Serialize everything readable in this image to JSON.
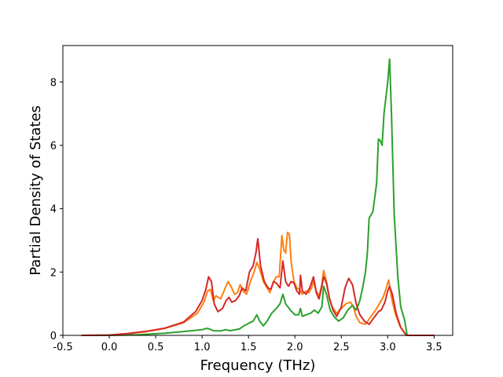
{
  "chart_data": {
    "type": "line",
    "title": "",
    "xlabel": "Frequency (THz)",
    "ylabel": "Partial Density of States",
    "xlim": [
      -0.5,
      3.7
    ],
    "ylim": [
      0,
      9.15
    ],
    "grid": false,
    "legend": "none",
    "x_ticks": [
      "-0.5",
      "0.0",
      "0.5",
      "1.0",
      "1.5",
      "2.0",
      "2.5",
      "3.0",
      "3.5"
    ],
    "y_ticks": [
      "0",
      "2",
      "4",
      "6",
      "8"
    ],
    "series": [
      {
        "color": "#ff7f0e",
        "points": [
          [
            -0.3,
            0
          ],
          [
            0,
            0.01
          ],
          [
            0.2,
            0.05
          ],
          [
            0.4,
            0.12
          ],
          [
            0.6,
            0.22
          ],
          [
            0.8,
            0.4
          ],
          [
            0.95,
            0.7
          ],
          [
            1.02,
            1.05
          ],
          [
            1.06,
            1.4
          ],
          [
            1.09,
            1.45
          ],
          [
            1.12,
            1.1
          ],
          [
            1.15,
            1.25
          ],
          [
            1.2,
            1.15
          ],
          [
            1.25,
            1.5
          ],
          [
            1.28,
            1.7
          ],
          [
            1.31,
            1.55
          ],
          [
            1.35,
            1.3
          ],
          [
            1.38,
            1.35
          ],
          [
            1.41,
            1.6
          ],
          [
            1.44,
            1.4
          ],
          [
            1.48,
            1.3
          ],
          [
            1.52,
            1.7
          ],
          [
            1.56,
            2.0
          ],
          [
            1.59,
            2.3
          ],
          [
            1.62,
            2.1
          ],
          [
            1.66,
            1.7
          ],
          [
            1.7,
            1.5
          ],
          [
            1.73,
            1.35
          ],
          [
            1.77,
            1.7
          ],
          [
            1.8,
            1.85
          ],
          [
            1.83,
            1.85
          ],
          [
            1.86,
            3.15
          ],
          [
            1.88,
            2.7
          ],
          [
            1.9,
            2.6
          ],
          [
            1.92,
            3.25
          ],
          [
            1.94,
            3.2
          ],
          [
            1.96,
            2.3
          ],
          [
            1.99,
            1.7
          ],
          [
            2.02,
            1.5
          ],
          [
            2.05,
            1.45
          ],
          [
            2.08,
            1.3
          ],
          [
            2.12,
            1.4
          ],
          [
            2.15,
            1.35
          ],
          [
            2.18,
            1.5
          ],
          [
            2.2,
            1.7
          ],
          [
            2.23,
            1.4
          ],
          [
            2.26,
            1.25
          ],
          [
            2.29,
            1.6
          ],
          [
            2.31,
            2.05
          ],
          [
            2.34,
            1.7
          ],
          [
            2.37,
            1.2
          ],
          [
            2.4,
            0.9
          ],
          [
            2.45,
            0.7
          ],
          [
            2.5,
            0.85
          ],
          [
            2.55,
            1.0
          ],
          [
            2.6,
            1.05
          ],
          [
            2.63,
            0.9
          ],
          [
            2.66,
            0.6
          ],
          [
            2.7,
            0.4
          ],
          [
            2.76,
            0.35
          ],
          [
            2.82,
            0.6
          ],
          [
            2.87,
            0.8
          ],
          [
            2.91,
            1.0
          ],
          [
            2.95,
            1.2
          ],
          [
            2.98,
            1.45
          ],
          [
            3.01,
            1.75
          ],
          [
            3.04,
            1.2
          ],
          [
            3.08,
            0.7
          ],
          [
            3.13,
            0.3
          ],
          [
            3.2,
            0
          ],
          [
            3.5,
            0
          ]
        ]
      },
      {
        "color": "#2ca02c",
        "points": [
          [
            -0.3,
            0
          ],
          [
            0,
            0
          ],
          [
            0.3,
            0.02
          ],
          [
            0.6,
            0.07
          ],
          [
            0.9,
            0.15
          ],
          [
            1.0,
            0.18
          ],
          [
            1.05,
            0.22
          ],
          [
            1.08,
            0.2
          ],
          [
            1.12,
            0.15
          ],
          [
            1.2,
            0.14
          ],
          [
            1.25,
            0.18
          ],
          [
            1.3,
            0.15
          ],
          [
            1.4,
            0.2
          ],
          [
            1.45,
            0.3
          ],
          [
            1.5,
            0.38
          ],
          [
            1.55,
            0.45
          ],
          [
            1.59,
            0.65
          ],
          [
            1.62,
            0.45
          ],
          [
            1.66,
            0.3
          ],
          [
            1.7,
            0.45
          ],
          [
            1.75,
            0.7
          ],
          [
            1.8,
            0.85
          ],
          [
            1.84,
            1.0
          ],
          [
            1.87,
            1.3
          ],
          [
            1.9,
            1.0
          ],
          [
            1.95,
            0.8
          ],
          [
            2.0,
            0.65
          ],
          [
            2.04,
            0.65
          ],
          [
            2.06,
            0.85
          ],
          [
            2.08,
            0.6
          ],
          [
            2.12,
            0.65
          ],
          [
            2.17,
            0.7
          ],
          [
            2.21,
            0.8
          ],
          [
            2.25,
            0.7
          ],
          [
            2.29,
            0.9
          ],
          [
            2.31,
            1.55
          ],
          [
            2.34,
            1.3
          ],
          [
            2.38,
            0.8
          ],
          [
            2.42,
            0.6
          ],
          [
            2.47,
            0.45
          ],
          [
            2.52,
            0.55
          ],
          [
            2.57,
            0.8
          ],
          [
            2.62,
            0.95
          ],
          [
            2.66,
            0.8
          ],
          [
            2.7,
            1.1
          ],
          [
            2.73,
            1.5
          ],
          [
            2.76,
            2.0
          ],
          [
            2.78,
            2.6
          ],
          [
            2.8,
            3.7
          ],
          [
            2.84,
            3.9
          ],
          [
            2.88,
            4.8
          ],
          [
            2.9,
            6.2
          ],
          [
            2.92,
            6.15
          ],
          [
            2.94,
            6.0
          ],
          [
            2.96,
            7.0
          ],
          [
            2.98,
            7.5
          ],
          [
            3.0,
            8.0
          ],
          [
            3.02,
            8.72
          ],
          [
            3.04,
            7.0
          ],
          [
            3.07,
            3.8
          ],
          [
            3.11,
            1.8
          ],
          [
            3.14,
            0.9
          ],
          [
            3.18,
            0.5
          ],
          [
            3.21,
            0
          ],
          [
            3.5,
            0
          ]
        ]
      },
      {
        "color": "#d62728",
        "points": [
          [
            -0.3,
            0
          ],
          [
            0,
            0.01
          ],
          [
            0.2,
            0.06
          ],
          [
            0.4,
            0.13
          ],
          [
            0.6,
            0.23
          ],
          [
            0.8,
            0.42
          ],
          [
            0.93,
            0.75
          ],
          [
            1.0,
            1.1
          ],
          [
            1.04,
            1.45
          ],
          [
            1.07,
            1.85
          ],
          [
            1.1,
            1.7
          ],
          [
            1.13,
            1.0
          ],
          [
            1.17,
            0.75
          ],
          [
            1.22,
            0.85
          ],
          [
            1.26,
            1.1
          ],
          [
            1.29,
            1.2
          ],
          [
            1.32,
            1.05
          ],
          [
            1.36,
            1.1
          ],
          [
            1.4,
            1.25
          ],
          [
            1.43,
            1.5
          ],
          [
            1.47,
            1.4
          ],
          [
            1.51,
            2.0
          ],
          [
            1.55,
            2.2
          ],
          [
            1.58,
            2.6
          ],
          [
            1.6,
            3.05
          ],
          [
            1.63,
            2.2
          ],
          [
            1.67,
            1.7
          ],
          [
            1.71,
            1.5
          ],
          [
            1.74,
            1.45
          ],
          [
            1.77,
            1.7
          ],
          [
            1.8,
            1.65
          ],
          [
            1.84,
            1.5
          ],
          [
            1.87,
            2.35
          ],
          [
            1.9,
            1.7
          ],
          [
            1.93,
            1.55
          ],
          [
            1.96,
            1.7
          ],
          [
            1.99,
            1.65
          ],
          [
            2.02,
            1.4
          ],
          [
            2.05,
            1.3
          ],
          [
            2.06,
            1.9
          ],
          [
            2.08,
            1.4
          ],
          [
            2.12,
            1.3
          ],
          [
            2.16,
            1.5
          ],
          [
            2.2,
            1.85
          ],
          [
            2.23,
            1.35
          ],
          [
            2.26,
            1.15
          ],
          [
            2.28,
            1.4
          ],
          [
            2.31,
            1.85
          ],
          [
            2.34,
            1.65
          ],
          [
            2.37,
            1.2
          ],
          [
            2.41,
            0.8
          ],
          [
            2.45,
            0.6
          ],
          [
            2.5,
            0.9
          ],
          [
            2.54,
            1.5
          ],
          [
            2.58,
            1.8
          ],
          [
            2.62,
            1.6
          ],
          [
            2.66,
            1.0
          ],
          [
            2.7,
            0.65
          ],
          [
            2.75,
            0.45
          ],
          [
            2.8,
            0.35
          ],
          [
            2.85,
            0.55
          ],
          [
            2.9,
            0.75
          ],
          [
            2.93,
            0.8
          ],
          [
            2.97,
            1.05
          ],
          [
            3.0,
            1.4
          ],
          [
            3.02,
            1.55
          ],
          [
            3.05,
            1.3
          ],
          [
            3.09,
            0.7
          ],
          [
            3.14,
            0.25
          ],
          [
            3.2,
            0
          ],
          [
            3.5,
            0
          ]
        ]
      }
    ]
  }
}
